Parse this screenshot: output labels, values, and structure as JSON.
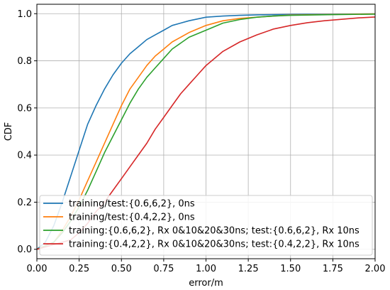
{
  "chart_data": {
    "type": "line",
    "title": "",
    "xlabel": "error/m",
    "ylabel": "CDF",
    "xlim": [
      0.0,
      2.0
    ],
    "ylim": [
      -0.04,
      1.04
    ],
    "xticks": [
      "0.00",
      "0.25",
      "0.50",
      "0.75",
      "1.00",
      "1.25",
      "1.50",
      "1.75",
      "2.00"
    ],
    "yticks": [
      "0.0",
      "0.2",
      "0.4",
      "0.6",
      "0.8",
      "1.0"
    ],
    "grid": true,
    "legend_position": "lower-left",
    "series": [
      {
        "name": "training/test:{0.6,6,2}, 0ns",
        "color": "#1f77b4",
        "x": [
          0.0,
          0.05,
          0.1,
          0.15,
          0.2,
          0.25,
          0.3,
          0.35,
          0.4,
          0.45,
          0.5,
          0.55,
          0.6,
          0.65,
          0.7,
          0.75,
          0.8,
          0.9,
          1.0,
          1.1,
          1.2,
          1.3,
          1.5,
          1.75,
          2.0
        ],
        "y": [
          0.0,
          0.03,
          0.1,
          0.2,
          0.31,
          0.42,
          0.53,
          0.61,
          0.68,
          0.74,
          0.79,
          0.83,
          0.86,
          0.89,
          0.91,
          0.93,
          0.95,
          0.97,
          0.985,
          0.99,
          0.993,
          0.995,
          0.997,
          0.998,
          0.999
        ]
      },
      {
        "name": "training/test:{0.4,2,2}, 0ns",
        "color": "#ff7f0e",
        "x": [
          0.0,
          0.1,
          0.15,
          0.2,
          0.25,
          0.3,
          0.35,
          0.4,
          0.45,
          0.5,
          0.55,
          0.6,
          0.65,
          0.7,
          0.75,
          0.8,
          0.9,
          1.0,
          1.1,
          1.2,
          1.3,
          1.4,
          1.5,
          1.75,
          2.0
        ],
        "y": [
          0.0,
          0.03,
          0.08,
          0.14,
          0.21,
          0.29,
          0.37,
          0.45,
          0.53,
          0.61,
          0.68,
          0.73,
          0.78,
          0.82,
          0.85,
          0.88,
          0.92,
          0.95,
          0.97,
          0.98,
          0.985,
          0.99,
          0.994,
          0.997,
          0.999
        ]
      },
      {
        "name": "training:{0.6,6,2}, Rx 0&10&20&30ns; test:{0.6,6,2}, Rx 10ns",
        "color": "#2ca02c",
        "x": [
          0.0,
          0.1,
          0.15,
          0.2,
          0.25,
          0.3,
          0.35,
          0.4,
          0.45,
          0.5,
          0.55,
          0.6,
          0.65,
          0.7,
          0.75,
          0.8,
          0.9,
          1.0,
          1.1,
          1.2,
          1.3,
          1.4,
          1.5,
          1.75,
          2.0
        ],
        "y": [
          0.0,
          0.03,
          0.07,
          0.12,
          0.18,
          0.25,
          0.33,
          0.41,
          0.48,
          0.55,
          0.62,
          0.68,
          0.73,
          0.77,
          0.81,
          0.85,
          0.9,
          0.93,
          0.96,
          0.975,
          0.985,
          0.99,
          0.993,
          0.996,
          0.998
        ]
      },
      {
        "name": "training:{0.4,2,2}, Rx 0&10&20&30ns; test:{0.4,2,2}, Rx 10ns",
        "color": "#d62728",
        "x": [
          0.0,
          0.2,
          0.25,
          0.3,
          0.35,
          0.4,
          0.45,
          0.5,
          0.55,
          0.6,
          0.65,
          0.7,
          0.75,
          0.8,
          0.85,
          0.9,
          0.95,
          1.0,
          1.1,
          1.2,
          1.3,
          1.4,
          1.5,
          1.6,
          1.7,
          1.8,
          1.9,
          2.0
        ],
        "y": [
          0.0,
          0.04,
          0.07,
          0.11,
          0.16,
          0.2,
          0.25,
          0.3,
          0.35,
          0.4,
          0.45,
          0.51,
          0.56,
          0.61,
          0.66,
          0.7,
          0.74,
          0.78,
          0.84,
          0.88,
          0.91,
          0.935,
          0.95,
          0.962,
          0.97,
          0.976,
          0.982,
          0.986
        ]
      }
    ]
  }
}
